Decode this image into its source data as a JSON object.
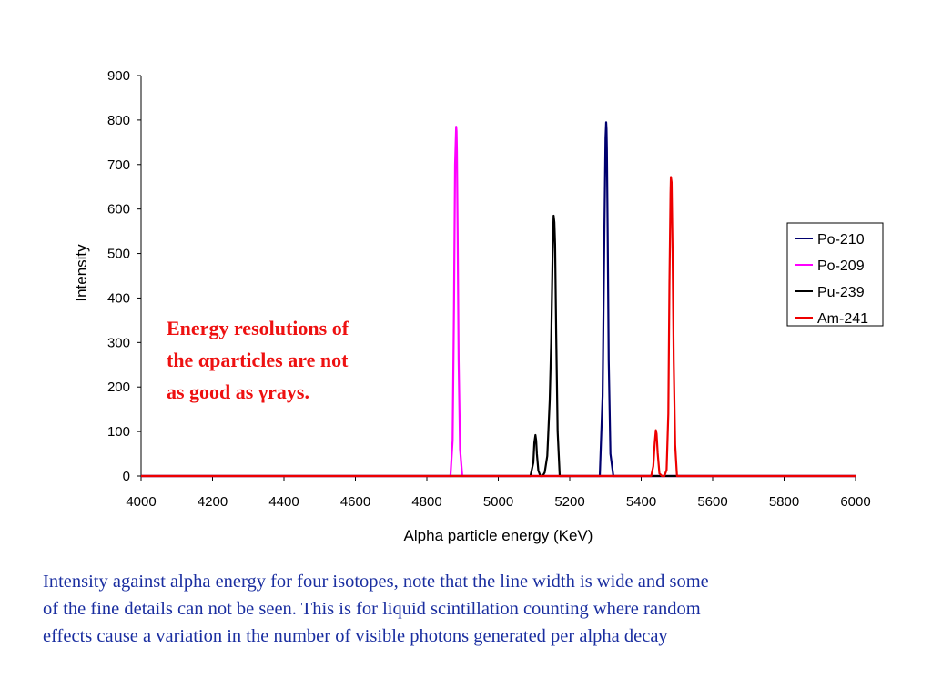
{
  "chart_data": {
    "type": "line",
    "title": "",
    "xlabel": "Alpha particle energy (KeV)",
    "ylabel": "Intensity",
    "xlim": [
      4000,
      6000
    ],
    "ylim": [
      0,
      900
    ],
    "xticks": [
      4000,
      4200,
      4400,
      4600,
      4800,
      5000,
      5200,
      5400,
      5600,
      5800,
      6000
    ],
    "yticks": [
      0,
      100,
      200,
      300,
      400,
      500,
      600,
      700,
      800,
      900
    ],
    "grid": false,
    "legend_position": "right",
    "series": [
      {
        "name": "Po-210",
        "color": "#00006e",
        "x": [
          4000,
          5284,
          5292,
          5297,
          5300,
          5302,
          5303,
          5304,
          5306,
          5309,
          5314,
          5322,
          6000
        ],
        "y": [
          0,
          0,
          180,
          560,
          760,
          795,
          780,
          735,
          560,
          260,
          50,
          0,
          0
        ]
      },
      {
        "name": "Po-209",
        "color": "#ff00ff",
        "x": [
          4000,
          4866,
          4872,
          4876,
          4879,
          4882,
          4883,
          4884,
          4886,
          4889,
          4893,
          4899,
          6000
        ],
        "y": [
          0,
          0,
          80,
          380,
          700,
          785,
          775,
          730,
          550,
          260,
          60,
          0,
          0
        ]
      },
      {
        "name": "Pu-239",
        "color": "#000000",
        "x": [
          4000,
          5090,
          5098,
          5101,
          5104,
          5106,
          5108,
          5112,
          5118,
          5124,
          5130,
          5137,
          5144,
          5148,
          5152,
          5155,
          5157,
          5159,
          5162,
          5166,
          5172,
          6000
        ],
        "y": [
          0,
          0,
          30,
          75,
          92,
          80,
          50,
          12,
          0,
          0,
          8,
          45,
          170,
          300,
          500,
          585,
          570,
          520,
          320,
          100,
          0,
          0
        ]
      },
      {
        "name": "Am-241",
        "color": "#ee0000",
        "x": [
          4000,
          5428,
          5434,
          5438,
          5441,
          5443,
          5446,
          5451,
          5458,
          5465,
          5471,
          5476,
          5479,
          5482,
          5483,
          5485,
          5488,
          5491,
          5495,
          5500,
          6000
        ],
        "y": [
          0,
          0,
          22,
          75,
          103,
          95,
          52,
          6,
          0,
          0,
          14,
          140,
          430,
          635,
          672,
          660,
          500,
          260,
          70,
          0,
          0
        ]
      }
    ]
  },
  "annotation": {
    "lines": [
      "Energy resolutions of",
      "the αparticles are not",
      "as good as γrays."
    ],
    "color": "#ee1111"
  },
  "caption": {
    "lines": [
      "Intensity against alpha energy for four isotopes, note that the line width is wide and some",
      "of the fine details can not be seen. This is for liquid scintillation counting where random",
      "effects cause a variation in the number of visible photons generated per alpha decay"
    ],
    "color": "#1a2ea0"
  }
}
